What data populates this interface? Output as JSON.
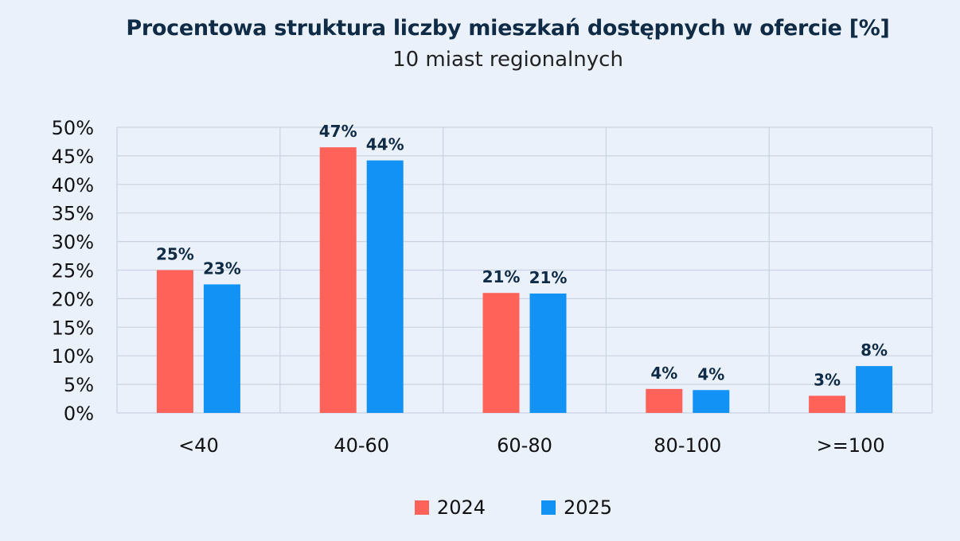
{
  "chart_data": {
    "type": "bar",
    "title": "Procentowa struktura liczby mieszkań dostępnych w ofercie [%]",
    "subtitle": "10 miast regionalnych",
    "xlabel": "",
    "ylabel": "",
    "categories": [
      "<40",
      "40-60",
      "60-80",
      "80-100",
      ">=100"
    ],
    "series": [
      {
        "name": "2024",
        "color": "#FF6259",
        "values": [
          25,
          46.5,
          21,
          4.2,
          3
        ],
        "labels": [
          "25%",
          "47%",
          "21%",
          "4%",
          "3%"
        ]
      },
      {
        "name": "2025",
        "color": "#1292F4",
        "values": [
          22.5,
          44.2,
          20.9,
          4,
          8.2
        ],
        "labels": [
          "23%",
          "44%",
          "21%",
          "4%",
          "8%"
        ]
      }
    ],
    "ylim": [
      0,
      50
    ],
    "yticks": [
      "0%",
      "5%",
      "10%",
      "15%",
      "20%",
      "25%",
      "30%",
      "35%",
      "40%",
      "45%",
      "50%"
    ],
    "grid": true,
    "legend_position": "bottom"
  }
}
